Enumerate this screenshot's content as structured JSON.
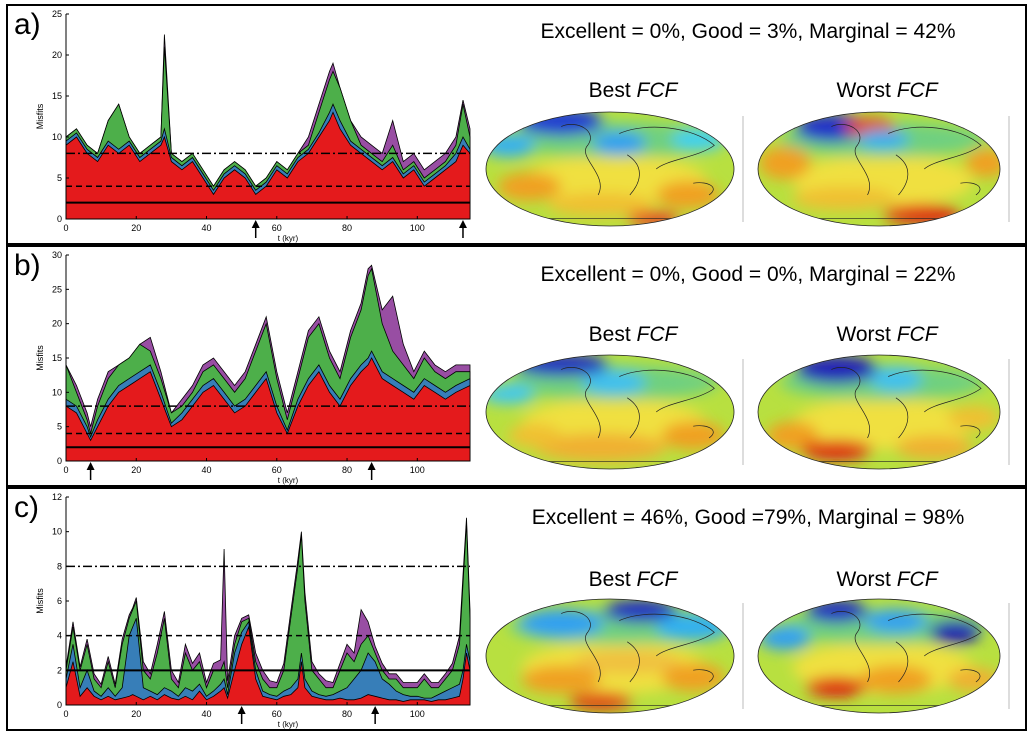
{
  "panels": [
    {
      "letter": "a)",
      "stats_text": "Excellent = 0%, Good = 3%, Marginal = 42%",
      "best_label": "Best",
      "worst_label": "Worst",
      "fcf_label": "FCF",
      "chart_data": {
        "type": "area",
        "ylabel": "Misfits",
        "xlabel": "t (kyr)",
        "xlim": [
          0,
          115
        ],
        "ylim": [
          0,
          25
        ],
        "xticks": [
          0,
          20,
          40,
          60,
          80,
          100
        ],
        "yticks": [
          0,
          5,
          10,
          15,
          20,
          25
        ],
        "thresholds": [
          {
            "style": "solid",
            "y": 2
          },
          {
            "style": "dashed",
            "y": 4
          },
          {
            "style": "dashdot",
            "y": 8
          }
        ],
        "arrows_x": [
          54,
          113
        ],
        "x": [
          0,
          3,
          6,
          9,
          12,
          15,
          18,
          21,
          24,
          27,
          28,
          30,
          33,
          36,
          39,
          42,
          45,
          48,
          51,
          54,
          57,
          60,
          63,
          66,
          69,
          72,
          75,
          76,
          78,
          81,
          84,
          87,
          90,
          93,
          96,
          99,
          102,
          105,
          108,
          111,
          113,
          115
        ],
        "series": [
          {
            "color": "#e41a1c",
            "values": [
              9,
              10,
              8,
              7,
              9,
              8,
              9,
              7,
              8,
              9,
              10,
              7,
              6,
              7,
              5,
              3,
              5,
              6,
              5,
              3,
              4,
              6,
              5,
              7,
              8,
              10,
              12,
              13,
              11,
              9,
              8,
              7,
              6,
              7,
              5,
              6,
              4,
              5,
              6,
              7,
              9,
              8
            ]
          },
          {
            "color": "#377eb8",
            "values": [
              9.5,
              10.5,
              8.5,
              7.5,
              9.5,
              8.5,
              9.5,
              7.5,
              8.5,
              9.5,
              11,
              7.5,
              6.5,
              7.5,
              5.5,
              3.5,
              5.5,
              6.5,
              5.5,
              3.5,
              4.5,
              6.5,
              5.5,
              7.5,
              8.5,
              10.5,
              13,
              14,
              12,
              9.5,
              8.5,
              7.5,
              6.5,
              7.5,
              5.5,
              6.5,
              4.5,
              5.5,
              6.5,
              8,
              10,
              8.5
            ]
          },
          {
            "color": "#4daf4a",
            "values": [
              10,
              11,
              9,
              8,
              12,
              14,
              10,
              8,
              9,
              10,
              21,
              8,
              7,
              8,
              6,
              4,
              6,
              7,
              6,
              4,
              5,
              7,
              6,
              8,
              9,
              13,
              17,
              18,
              16,
              12,
              9,
              8,
              7,
              9,
              6,
              7,
              5,
              6,
              7,
              9,
              14,
              10
            ]
          },
          {
            "color": "#984ea3",
            "values": [
              10,
              11,
              9,
              8,
              12,
              14,
              10,
              8,
              9,
              10,
              22.5,
              8,
              7,
              8,
              6,
              4,
              6,
              7,
              6,
              4,
              5,
              7,
              6,
              8,
              10,
              14,
              18,
              19,
              16,
              12,
              10,
              9,
              8,
              12,
              7,
              8,
              6,
              7,
              8,
              10,
              14.5,
              11
            ]
          }
        ]
      }
    },
    {
      "letter": "b)",
      "stats_text": "Excellent = 0%, Good = 0%, Marginal = 22%",
      "best_label": "Best",
      "worst_label": "Worst",
      "fcf_label": "FCF",
      "chart_data": {
        "type": "area",
        "ylabel": "Misfits",
        "xlabel": "t (kyr)",
        "xlim": [
          0,
          115
        ],
        "ylim": [
          0,
          30
        ],
        "xticks": [
          0,
          20,
          40,
          60,
          80,
          100
        ],
        "yticks": [
          0,
          5,
          10,
          15,
          20,
          25,
          30
        ],
        "thresholds": [
          {
            "style": "solid",
            "y": 2
          },
          {
            "style": "dashed",
            "y": 4
          },
          {
            "style": "dashdot",
            "y": 8
          }
        ],
        "arrows_x": [
          7,
          87
        ],
        "x": [
          0,
          3,
          6,
          7,
          9,
          12,
          15,
          18,
          21,
          24,
          27,
          30,
          33,
          36,
          39,
          42,
          45,
          48,
          51,
          54,
          57,
          60,
          63,
          66,
          69,
          72,
          75,
          78,
          81,
          84,
          86,
          87,
          90,
          93,
          96,
          99,
          102,
          105,
          108,
          111,
          115
        ],
        "series": [
          {
            "color": "#e41a1c",
            "values": [
              8,
              7,
              4,
              3,
              5,
              8,
              10,
              11,
              12,
              13,
              9,
              5,
              6,
              8,
              10,
              11,
              9,
              7,
              8,
              10,
              12,
              7,
              4,
              8,
              11,
              13,
              10,
              8,
              11,
              13,
              14,
              15,
              12,
              11,
              10,
              9,
              11,
              10,
              9,
              10,
              11
            ]
          },
          {
            "color": "#377eb8",
            "values": [
              9,
              8,
              5,
              3.5,
              6,
              9,
              11,
              12,
              13,
              14,
              10,
              5.5,
              7,
              9,
              11,
              12,
              10,
              8,
              9,
              11,
              13,
              8,
              4.5,
              9,
              12,
              14,
              11,
              9,
              12,
              14,
              15,
              16,
              13,
              12,
              11,
              10,
              12,
              11,
              10,
              11,
              12
            ]
          },
          {
            "color": "#4daf4a",
            "values": [
              14,
              10,
              6,
              4,
              8,
              12,
              14,
              15,
              17,
              16,
              12,
              7,
              8,
              10,
              13,
              14,
              12,
              10,
              12,
              16,
              20,
              12,
              6,
              12,
              18,
              20,
              15,
              12,
              18,
              22,
              27,
              28,
              20,
              16,
              14,
              12,
              15,
              13,
              12,
              13,
              13
            ]
          },
          {
            "color": "#984ea3",
            "values": [
              14,
              11,
              7,
              5,
              9,
              13,
              14,
              15,
              17,
              18,
              13,
              7,
              9,
              11,
              14,
              15,
              13,
              11,
              13,
              17,
              21,
              13,
              7,
              13,
              19,
              21,
              16,
              13,
              19,
              23,
              28,
              28.5,
              22,
              24,
              17,
              13,
              16,
              14,
              13,
              14,
              14
            ]
          }
        ]
      }
    },
    {
      "letter": "c)",
      "stats_text": "Excellent = 46%, Good =79%, Marginal = 98%",
      "best_label": "Best",
      "worst_label": "Worst",
      "fcf_label": "FCF",
      "chart_data": {
        "type": "area",
        "ylabel": "Misfits",
        "xlabel": "t (kyr)",
        "xlim": [
          0,
          115
        ],
        "ylim": [
          0,
          12
        ],
        "xticks": [
          0,
          20,
          40,
          60,
          80,
          100
        ],
        "yticks": [
          0,
          2,
          4,
          6,
          8,
          10,
          12
        ],
        "thresholds": [
          {
            "style": "solid",
            "y": 2
          },
          {
            "style": "dashed",
            "y": 4
          },
          {
            "style": "dashdot",
            "y": 8
          }
        ],
        "arrows_x": [
          50,
          88
        ],
        "x": [
          0,
          2,
          4,
          6,
          8,
          10,
          12,
          14,
          16,
          18,
          19,
          20,
          22,
          24,
          26,
          28,
          30,
          32,
          34,
          36,
          38,
          40,
          42,
          44,
          45,
          46,
          48,
          50,
          52,
          54,
          56,
          58,
          60,
          62,
          64,
          66,
          67,
          68,
          70,
          72,
          74,
          76,
          78,
          80,
          82,
          84,
          86,
          88,
          90,
          92,
          94,
          96,
          98,
          100,
          102,
          104,
          106,
          108,
          110,
          112,
          113,
          114,
          115
        ],
        "series": [
          {
            "color": "#e41a1c",
            "values": [
              1,
              2.5,
              0.5,
              1,
              0.5,
              0.3,
              0.5,
              0.3,
              0.4,
              0.5,
              0.6,
              0.5,
              0.3,
              0.5,
              0.3,
              0.6,
              0.4,
              0.3,
              0.5,
              0.3,
              0.8,
              0.3,
              0.5,
              0.8,
              1,
              0.4,
              2,
              3.5,
              4.5,
              1.5,
              0.5,
              0.4,
              0.3,
              0.5,
              0.6,
              1,
              2.5,
              1,
              0.5,
              0.4,
              0.3,
              0.3,
              0.4,
              0.3,
              0.3,
              0.4,
              0.6,
              0.5,
              0.4,
              0.3,
              0.3,
              0.2,
              0.3,
              0.3,
              0.3,
              0.2,
              0.3,
              0.3,
              0.4,
              0.5,
              1.5,
              3,
              2
            ]
          },
          {
            "color": "#377eb8",
            "values": [
              1.5,
              3.5,
              1,
              2,
              0.8,
              0.5,
              1,
              0.5,
              1,
              4,
              4.5,
              5,
              1,
              0.8,
              0.6,
              1,
              0.8,
              0.5,
              1,
              0.8,
              1.2,
              0.5,
              0.8,
              1.2,
              1.5,
              0.6,
              3,
              4.2,
              4.8,
              2,
              0.8,
              0.6,
              0.5,
              0.8,
              1,
              1.5,
              3,
              1.5,
              0.8,
              0.6,
              0.5,
              0.6,
              0.8,
              1,
              1.5,
              2,
              3,
              2.5,
              1.5,
              1.2,
              0.8,
              0.6,
              0.5,
              0.5,
              0.4,
              0.4,
              0.6,
              0.8,
              1,
              1.2,
              2,
              3.5,
              2.5
            ]
          },
          {
            "color": "#4daf4a",
            "values": [
              2,
              4.5,
              2,
              3.5,
              1.5,
              1,
              2.5,
              1,
              3.5,
              5,
              5.5,
              6,
              2,
              1.5,
              3,
              5,
              1.5,
              1,
              3,
              2,
              2.5,
              1,
              2,
              2,
              2.5,
              1,
              3.5,
              4.8,
              5,
              2.5,
              1.5,
              1,
              1,
              2,
              5,
              8,
              9.8,
              6,
              2,
              1.5,
              1,
              1,
              2,
              3,
              2.5,
              3.5,
              4,
              3,
              2,
              1.5,
              1.5,
              1,
              1,
              1,
              1.5,
              1,
              1,
              1.5,
              2,
              3.5,
              7,
              10.5,
              5
            ]
          },
          {
            "color": "#984ea3",
            "values": [
              2.2,
              4.8,
              2.2,
              3.8,
              1.8,
              1.2,
              2.8,
              1.2,
              3.8,
              5.2,
              5.6,
              6.2,
              2.5,
              1.8,
              3.5,
              5.4,
              2,
              1.3,
              3.5,
              2.4,
              3,
              1.3,
              2.4,
              2.6,
              9,
              1.4,
              4,
              5,
              5.2,
              3,
              2,
              1.4,
              1.3,
              2.4,
              5.4,
              8.4,
              10,
              6.5,
              2.5,
              1.8,
              1.4,
              1.3,
              2.4,
              3.5,
              3,
              5.5,
              4.8,
              3.4,
              2.4,
              1.8,
              1.8,
              1.3,
              1.3,
              1.3,
              1.8,
              1.3,
              1.3,
              1.8,
              2.4,
              4,
              7.5,
              10.8,
              5.5
            ]
          }
        ]
      }
    }
  ]
}
